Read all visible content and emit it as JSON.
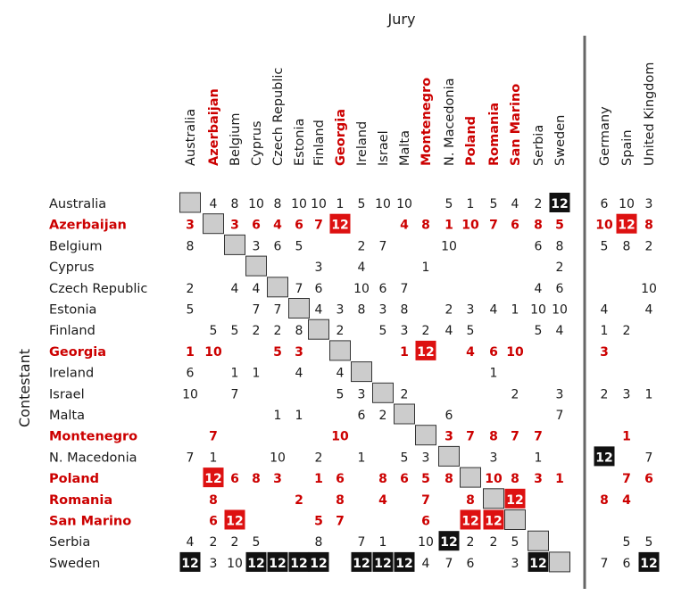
{
  "chart_data": {
    "type": "heatmap",
    "title": "",
    "xlabel": "Jury",
    "ylabel": "Contestant",
    "jury": [
      "Australia",
      "Azerbaijan",
      "Belgium",
      "Cyprus",
      "Czech Republic",
      "Estonia",
      "Finland",
      "Georgia",
      "Ireland",
      "Israel",
      "Malta",
      "Montenegro",
      "N. Macedonia",
      "Poland",
      "Romania",
      "San Marino",
      "Serbia",
      "Sweden",
      "Germany",
      "Spain",
      "United Kingdom"
    ],
    "contestants": [
      "Australia",
      "Azerbaijan",
      "Belgium",
      "Cyprus",
      "Czech Republic",
      "Estonia",
      "Finland",
      "Georgia",
      "Ireland",
      "Israel",
      "Malta",
      "Montenegro",
      "N. Macedonia",
      "Poland",
      "Romania",
      "San Marino",
      "Serbia",
      "Sweden"
    ],
    "highlighted": [
      "Azerbaijan",
      "Georgia",
      "Montenegro",
      "Poland",
      "Romania",
      "San Marino"
    ],
    "highlight_color": "#cc0000",
    "twelve_black": "#111111",
    "twelve_red": "#dd1111",
    "diagonal_color": "#cccccc",
    "scores": [
      [
        null,
        4,
        8,
        10,
        8,
        10,
        10,
        1,
        5,
        10,
        10,
        null,
        5,
        1,
        5,
        4,
        2,
        12,
        6,
        10,
        3
      ],
      [
        3,
        null,
        3,
        6,
        4,
        6,
        7,
        12,
        null,
        null,
        4,
        8,
        1,
        10,
        7,
        6,
        8,
        5,
        10,
        12,
        8
      ],
      [
        8,
        null,
        null,
        3,
        6,
        5,
        null,
        null,
        2,
        7,
        null,
        null,
        10,
        null,
        null,
        null,
        6,
        8,
        5,
        8,
        2
      ],
      [
        null,
        null,
        null,
        null,
        null,
        null,
        3,
        null,
        4,
        null,
        null,
        1,
        null,
        null,
        null,
        null,
        null,
        2,
        null,
        null,
        null
      ],
      [
        2,
        null,
        4,
        4,
        null,
        7,
        6,
        null,
        10,
        6,
        7,
        null,
        null,
        null,
        null,
        null,
        4,
        6,
        null,
        null,
        10
      ],
      [
        5,
        null,
        null,
        7,
        7,
        null,
        4,
        3,
        8,
        3,
        8,
        null,
        2,
        3,
        4,
        1,
        10,
        10,
        4,
        null,
        4
      ],
      [
        null,
        5,
        5,
        2,
        2,
        8,
        null,
        2,
        null,
        5,
        3,
        2,
        4,
        5,
        null,
        null,
        5,
        4,
        1,
        2,
        null
      ],
      [
        1,
        10,
        null,
        null,
        5,
        3,
        null,
        null,
        null,
        null,
        1,
        12,
        null,
        4,
        6,
        10,
        null,
        null,
        3,
        null,
        null
      ],
      [
        6,
        null,
        1,
        1,
        null,
        4,
        null,
        4,
        null,
        null,
        null,
        null,
        null,
        null,
        1,
        null,
        null,
        null,
        null,
        null,
        null
      ],
      [
        10,
        null,
        7,
        null,
        null,
        null,
        null,
        5,
        3,
        null,
        2,
        null,
        null,
        null,
        null,
        2,
        null,
        3,
        2,
        3,
        1
      ],
      [
        null,
        null,
        null,
        null,
        1,
        1,
        null,
        null,
        6,
        2,
        null,
        null,
        6,
        null,
        null,
        null,
        null,
        7,
        null,
        null,
        null
      ],
      [
        null,
        7,
        null,
        null,
        null,
        null,
        null,
        10,
        null,
        null,
        null,
        null,
        3,
        7,
        8,
        7,
        7,
        null,
        null,
        1,
        null
      ],
      [
        7,
        1,
        null,
        null,
        10,
        null,
        2,
        null,
        1,
        null,
        5,
        3,
        null,
        null,
        3,
        null,
        1,
        null,
        12,
        null,
        7
      ],
      [
        null,
        12,
        6,
        8,
        3,
        null,
        1,
        6,
        null,
        8,
        6,
        5,
        8,
        null,
        10,
        8,
        3,
        1,
        null,
        7,
        6
      ],
      [
        null,
        8,
        null,
        null,
        null,
        2,
        null,
        8,
        null,
        4,
        null,
        7,
        null,
        8,
        null,
        12,
        null,
        null,
        8,
        4,
        null
      ],
      [
        null,
        6,
        12,
        null,
        null,
        null,
        5,
        7,
        null,
        null,
        null,
        6,
        null,
        12,
        12,
        null,
        null,
        null,
        null,
        null,
        null
      ],
      [
        4,
        2,
        2,
        5,
        null,
        null,
        8,
        null,
        7,
        1,
        null,
        10,
        12,
        2,
        2,
        5,
        null,
        null,
        null,
        5,
        5
      ],
      [
        12,
        3,
        10,
        12,
        12,
        12,
        12,
        null,
        12,
        12,
        12,
        4,
        7,
        6,
        null,
        3,
        12,
        null,
        7,
        6,
        12
      ]
    ]
  }
}
